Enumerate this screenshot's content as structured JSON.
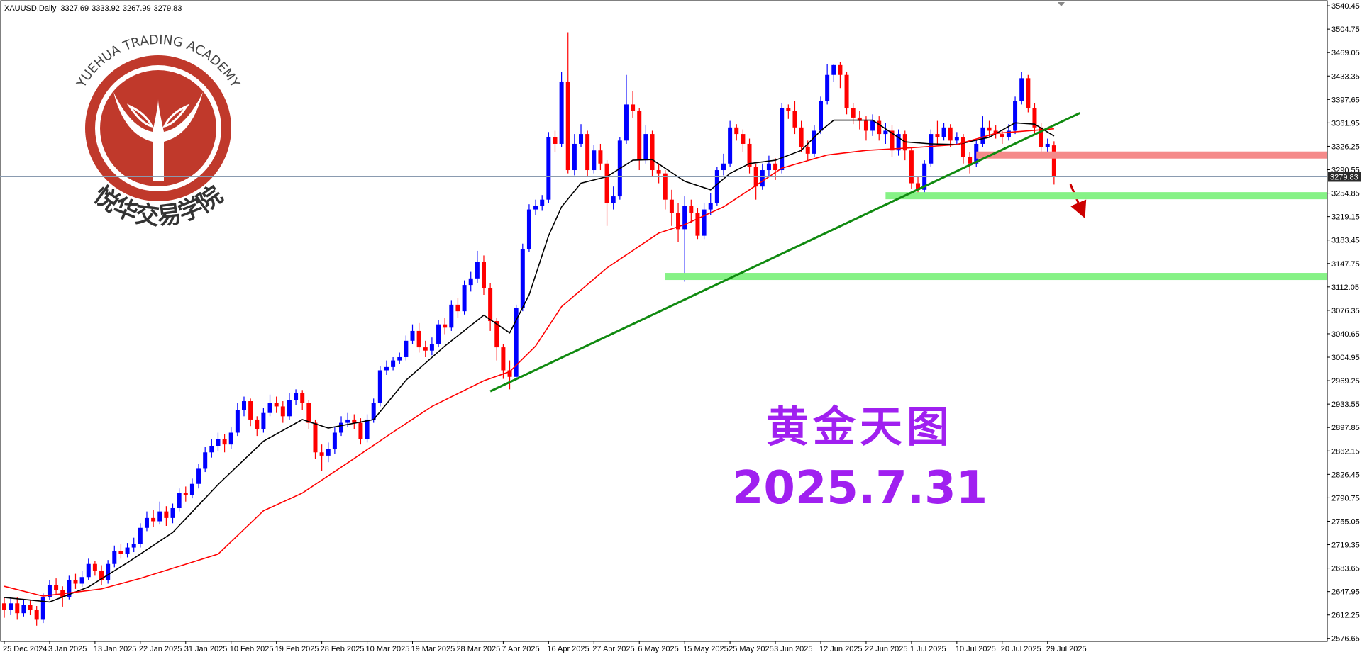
{
  "chart_data": {
    "type": "candlestick",
    "symbol": "XAUUSD,Daily",
    "categories": [
      "25 Dec 2024",
      null,
      null,
      null,
      null,
      null,
      null,
      "3 Jan 2025",
      null,
      null,
      null,
      null,
      null,
      null,
      "13 Jan 2025",
      null,
      null,
      null,
      null,
      null,
      null,
      "22 Jan 2025",
      null,
      null,
      null,
      null,
      null,
      null,
      "31 Jan 2025",
      null,
      null,
      null,
      null,
      null,
      null,
      "10 Feb 2025",
      null,
      null,
      null,
      null,
      null,
      null,
      "19 Feb 2025",
      null,
      null,
      null,
      null,
      null,
      null,
      "28 Feb 2025",
      null,
      null,
      null,
      null,
      null,
      null,
      "10 Mar 2025",
      null,
      null,
      null,
      null,
      null,
      null,
      "19 Mar 2025",
      null,
      null,
      null,
      null,
      null,
      null,
      "28 Mar 2025",
      null,
      null,
      null,
      null,
      null,
      null,
      "7 Apr 2025",
      null,
      null,
      null,
      null,
      null,
      null,
      "16 Apr 2025",
      null,
      null,
      null,
      null,
      null,
      null,
      "27 Apr 2025",
      null,
      null,
      null,
      null,
      null,
      null,
      "6 May 2025",
      null,
      null,
      null,
      null,
      null,
      null,
      "15 May 2025",
      null,
      null,
      null,
      null,
      null,
      null,
      "25 May 2025",
      null,
      null,
      null,
      null,
      null,
      null,
      "3 Jun 2025",
      null,
      null,
      null,
      null,
      null,
      null,
      "12 Jun 2025",
      null,
      null,
      null,
      null,
      null,
      null,
      "22 Jun 2025",
      null,
      null,
      null,
      null,
      null,
      null,
      "1 Jul 2025",
      null,
      null,
      null,
      null,
      null,
      null,
      "10 Jul 2025",
      null,
      null,
      null,
      null,
      null,
      null,
      "20 Jul 2025",
      null,
      null,
      null,
      null,
      null,
      null,
      "29 Jul 2025",
      null
    ],
    "open": [
      2630,
      2620,
      2630,
      2615,
      2628,
      2620,
      2605,
      2640,
      2658,
      2650,
      2640,
      2665,
      2660,
      2670,
      2690,
      2680,
      2665,
      2690,
      2710,
      2705,
      2715,
      2720,
      2745,
      2760,
      2755,
      2770,
      2760,
      2775,
      2798,
      2795,
      2812,
      2835,
      2860,
      2870,
      2880,
      2872,
      2890,
      2925,
      2938,
      2910,
      2895,
      2920,
      2935,
      2930,
      2915,
      2940,
      2950,
      2935,
      2905,
      2860,
      2855,
      2865,
      2890,
      2905,
      2910,
      2905,
      2880,
      2910,
      2935,
      2985,
      2990,
      3000,
      3005,
      3030,
      3045,
      3020,
      3015,
      3025,
      3055,
      3050,
      3085,
      3075,
      3115,
      3125,
      3150,
      3110,
      3060,
      3020,
      2985,
      2975,
      3080,
      3170,
      3230,
      3235,
      3245,
      3340,
      3330,
      3425,
      3290,
      3330,
      3345,
      3290,
      3320,
      3300,
      3240,
      3250,
      3335,
      3390,
      3380,
      3305,
      3345,
      3290,
      3285,
      3245,
      3225,
      3200,
      3235,
      3225,
      3190,
      3230,
      3240,
      3290,
      3300,
      3355,
      3345,
      3330,
      3295,
      3265,
      3290,
      3300,
      3290,
      3385,
      3380,
      3355,
      3325,
      3315,
      3350,
      3395,
      3435,
      3450,
      3435,
      3385,
      3370,
      3365,
      3350,
      3365,
      3345,
      3350,
      3320,
      3345,
      3320,
      3270,
      3260,
      3300,
      3345,
      3340,
      3355,
      3335,
      3340,
      3310,
      3300,
      3330,
      3355,
      3350,
      3345,
      3340,
      3350,
      3395,
      3430,
      3385,
      3355,
      3325,
      3327.69
    ],
    "high": [
      2640,
      2638,
      2640,
      2635,
      2634,
      2626,
      2645,
      2665,
      2668,
      2656,
      2672,
      2675,
      2680,
      2698,
      2695,
      2688,
      2696,
      2718,
      2720,
      2722,
      2730,
      2752,
      2770,
      2772,
      2785,
      2778,
      2782,
      2805,
      2808,
      2820,
      2842,
      2868,
      2880,
      2890,
      2888,
      2898,
      2935,
      2945,
      2942,
      2915,
      2928,
      2948,
      2945,
      2938,
      2950,
      2956,
      2955,
      2940,
      2910,
      2872,
      2875,
      2898,
      2915,
      2920,
      2918,
      2912,
      2918,
      2942,
      2992,
      3000,
      3005,
      3012,
      3038,
      3055,
      3057,
      3030,
      3035,
      3062,
      3065,
      3092,
      3095,
      3122,
      3135,
      3167,
      3160,
      3118,
      3065,
      3025,
      3000,
      3085,
      3178,
      3238,
      3245,
      3252,
      3348,
      3350,
      3440,
      3500,
      3345,
      3360,
      3350,
      3328,
      3330,
      3305,
      3265,
      3340,
      3435,
      3410,
      3385,
      3358,
      3350,
      3300,
      3290,
      3260,
      3240,
      3250,
      3245,
      3232,
      3240,
      3255,
      3295,
      3315,
      3365,
      3360,
      3352,
      3338,
      3300,
      3300,
      3312,
      3308,
      3392,
      3390,
      3395,
      3365,
      3335,
      3358,
      3402,
      3451,
      3452,
      3455,
      3440,
      3392,
      3380,
      3372,
      3375,
      3372,
      3362,
      3358,
      3352,
      3350,
      3325,
      3280,
      3305,
      3352,
      3365,
      3362,
      3360,
      3348,
      3345,
      3318,
      3338,
      3372,
      3365,
      3358,
      3352,
      3360,
      3402,
      3440,
      3435,
      3392,
      3362,
      3338,
      3333.92
    ],
    "low": [
      2608,
      2612,
      2605,
      2610,
      2612,
      2596,
      2600,
      2635,
      2644,
      2625,
      2636,
      2652,
      2655,
      2665,
      2672,
      2658,
      2660,
      2685,
      2698,
      2700,
      2708,
      2715,
      2740,
      2746,
      2750,
      2748,
      2752,
      2770,
      2785,
      2790,
      2805,
      2830,
      2852,
      2862,
      2860,
      2865,
      2885,
      2915,
      2900,
      2885,
      2890,
      2915,
      2920,
      2905,
      2910,
      2932,
      2925,
      2895,
      2850,
      2832,
      2845,
      2858,
      2885,
      2898,
      2895,
      2872,
      2875,
      2905,
      2930,
      2978,
      2985,
      2995,
      3000,
      3025,
      3012,
      3005,
      3008,
      3020,
      3040,
      3045,
      3065,
      3070,
      3105,
      3118,
      3100,
      3045,
      3000,
      2972,
      2956,
      2970,
      3075,
      3165,
      3222,
      3228,
      3240,
      3318,
      3325,
      3285,
      3282,
      3325,
      3280,
      3285,
      3290,
      3205,
      3230,
      3245,
      3330,
      3370,
      3290,
      3300,
      3280,
      3270,
      3230,
      3205,
      3180,
      3120,
      3210,
      3185,
      3185,
      3222,
      3235,
      3282,
      3295,
      3335,
      3318,
      3285,
      3245,
      3260,
      3280,
      3275,
      3285,
      3368,
      3345,
      3318,
      3305,
      3310,
      3345,
      3390,
      3425,
      3415,
      3375,
      3360,
      3352,
      3335,
      3342,
      3335,
      3330,
      3310,
      3312,
      3305,
      3262,
      3248,
      3255,
      3295,
      3330,
      3335,
      3325,
      3328,
      3300,
      3285,
      3295,
      3325,
      3340,
      3338,
      3330,
      3335,
      3345,
      3390,
      3378,
      3345,
      3315,
      3315,
      3267.99
    ],
    "close": [
      2620,
      2630,
      2615,
      2628,
      2620,
      2605,
      2640,
      2658,
      2650,
      2640,
      2665,
      2660,
      2670,
      2690,
      2680,
      2665,
      2690,
      2710,
      2705,
      2715,
      2720,
      2745,
      2760,
      2755,
      2770,
      2760,
      2775,
      2798,
      2795,
      2812,
      2835,
      2860,
      2870,
      2880,
      2872,
      2890,
      2925,
      2938,
      2910,
      2895,
      2920,
      2935,
      2930,
      2915,
      2940,
      2950,
      2935,
      2905,
      2860,
      2855,
      2865,
      2890,
      2905,
      2910,
      2905,
      2880,
      2910,
      2935,
      2985,
      2990,
      3000,
      3005,
      3030,
      3045,
      3020,
      3015,
      3025,
      3055,
      3050,
      3085,
      3075,
      3115,
      3125,
      3150,
      3110,
      3060,
      3020,
      2985,
      2975,
      3080,
      3170,
      3230,
      3235,
      3245,
      3340,
      3330,
      3425,
      3290,
      3330,
      3345,
      3290,
      3320,
      3300,
      3240,
      3250,
      3335,
      3390,
      3380,
      3305,
      3345,
      3290,
      3285,
      3245,
      3225,
      3200,
      3235,
      3225,
      3190,
      3230,
      3240,
      3290,
      3300,
      3355,
      3345,
      3330,
      3295,
      3265,
      3290,
      3300,
      3290,
      3385,
      3380,
      3355,
      3325,
      3315,
      3350,
      3395,
      3435,
      3450,
      3435,
      3385,
      3370,
      3365,
      3350,
      3365,
      3345,
      3350,
      3320,
      3345,
      3320,
      3270,
      3260,
      3300,
      3345,
      3340,
      3355,
      3335,
      3340,
      3310,
      3300,
      3330,
      3355,
      3350,
      3345,
      3340,
      3350,
      3395,
      3430,
      3385,
      3355,
      3325,
      3330,
      3279.83
    ],
    "up_color": "#0000ff",
    "down_color": "#ff0000",
    "ylim": [
      2572,
      3547
    ],
    "yticks": [
      3540.45,
      3504.75,
      3469.05,
      3433.35,
      3397.65,
      3361.95,
      3326.25,
      3290.55,
      3254.85,
      3219.15,
      3183.45,
      3147.75,
      3112.05,
      3076.35,
      3040.65,
      3004.95,
      2969.25,
      2933.55,
      2897.85,
      2862.15,
      2826.45,
      2790.75,
      2755.05,
      2719.35,
      2683.65,
      2647.95,
      2612.25,
      2576.65
    ],
    "overlays": [
      {
        "type": "line",
        "color": "#000000",
        "x": [
          0,
          7,
          13,
          19,
          26,
          33,
          40,
          46,
          50,
          57,
          62,
          68,
          74,
          78,
          81,
          84,
          86,
          89,
          93,
          97,
          100,
          105,
          109,
          112,
          115,
          119,
          123,
          126,
          128,
          134,
          139,
          143,
          147,
          152,
          156,
          159,
          162
        ],
        "values": [
          2639,
          2632,
          2655,
          2692,
          2738,
          2811,
          2877,
          2910,
          2897,
          2910,
          2970,
          3022,
          3069,
          3042,
          3100,
          3190,
          3234,
          3270,
          3280,
          3305,
          3306,
          3273,
          3260,
          3285,
          3300,
          3305,
          3320,
          3350,
          3366,
          3366,
          3333,
          3330,
          3329,
          3340,
          3362,
          3360,
          3342
        ]
      },
      {
        "type": "line",
        "color": "#ff0000",
        "x": [
          0,
          6,
          15,
          21,
          33,
          40,
          46,
          53,
          60,
          66,
          74,
          78,
          82,
          86,
          93,
          101,
          105,
          111,
          115,
          120,
          127,
          133,
          140,
          147,
          153,
          162
        ],
        "values": [
          2656,
          2641,
          2652,
          2668,
          2705,
          2771,
          2798,
          2844,
          2891,
          2930,
          2969,
          2983,
          3022,
          3082,
          3141,
          3194,
          3207,
          3234,
          3260,
          3293,
          3313,
          3320,
          3324,
          3329,
          3346,
          3353
        ]
      }
    ],
    "zones": [
      {
        "price": 3313,
        "start": 150,
        "color": "#f58a8a"
      },
      {
        "price": 3251,
        "start": 136,
        "color": "#86f286"
      },
      {
        "price": 3128,
        "start": 102,
        "color": "#86f286"
      }
    ],
    "trendline": {
      "x": [
        75,
        166
      ],
      "values": [
        2953,
        3377
      ],
      "color": "#108a10"
    },
    "annotations": {
      "title": "黄金天图",
      "date": "2025.7.31",
      "color": "#a020f0"
    }
  },
  "logo": {
    "english": "YUEHUA TRADING ACADEMY",
    "chinese": "悦华交易学院",
    "color": "#c0392b"
  }
}
